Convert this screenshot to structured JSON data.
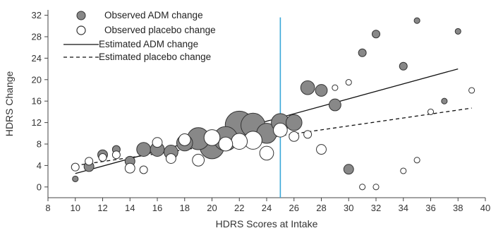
{
  "chart_data": {
    "type": "scatter",
    "xlabel": "HDRS Scores at Intake",
    "ylabel": "HDRS Change",
    "xlim": [
      8,
      40
    ],
    "ylim": [
      -2,
      33
    ],
    "x_ticks": [
      8,
      10,
      12,
      14,
      16,
      18,
      20,
      22,
      24,
      26,
      28,
      30,
      32,
      34,
      36,
      38,
      40
    ],
    "y_ticks": [
      0,
      4,
      8,
      12,
      16,
      20,
      24,
      28,
      32
    ],
    "legend": {
      "position": "top-left",
      "entries": [
        "Observed ADM change",
        "Observed placebo change",
        "Estimated ADM change",
        "Estimated placebo change"
      ]
    },
    "reference_line": {
      "x": 25,
      "color": "#3aa7d8"
    },
    "colors": {
      "adm_fill": "#888888",
      "placebo_fill": "#ffffff",
      "marker_stroke": "#333333"
    },
    "series": [
      {
        "name": "Observed ADM change",
        "points": [
          {
            "x": 10,
            "y": 1.5,
            "size": 1
          },
          {
            "x": 11,
            "y": 3.8,
            "size": 3
          },
          {
            "x": 12,
            "y": 6.0,
            "size": 3
          },
          {
            "x": 13,
            "y": 7.0,
            "size": 2
          },
          {
            "x": 14,
            "y": 4.8,
            "size": 3
          },
          {
            "x": 15,
            "y": 7.0,
            "size": 5
          },
          {
            "x": 16,
            "y": 7.0,
            "size": 5
          },
          {
            "x": 17,
            "y": 6.5,
            "size": 5
          },
          {
            "x": 18,
            "y": 8.2,
            "size": 6
          },
          {
            "x": 19,
            "y": 9.0,
            "size": 9
          },
          {
            "x": 20,
            "y": 7.5,
            "size": 10
          },
          {
            "x": 21,
            "y": 9.0,
            "size": 10
          },
          {
            "x": 22,
            "y": 11.5,
            "size": 12
          },
          {
            "x": 23,
            "y": 11.5,
            "size": 10
          },
          {
            "x": 24,
            "y": 10.0,
            "size": 8
          },
          {
            "x": 25,
            "y": 12.0,
            "size": 7
          },
          {
            "x": 26,
            "y": 12.0,
            "size": 6
          },
          {
            "x": 27,
            "y": 18.5,
            "size": 5
          },
          {
            "x": 28,
            "y": 18.0,
            "size": 4
          },
          {
            "x": 29,
            "y": 15.3,
            "size": 4
          },
          {
            "x": 30,
            "y": 3.3,
            "size": 3
          },
          {
            "x": 31,
            "y": 25.0,
            "size": 2
          },
          {
            "x": 32,
            "y": 28.5,
            "size": 2
          },
          {
            "x": 34,
            "y": 22.5,
            "size": 2
          },
          {
            "x": 35,
            "y": 31.0,
            "size": 1
          },
          {
            "x": 37,
            "y": 16.0,
            "size": 1
          },
          {
            "x": 38,
            "y": 29.0,
            "size": 1
          }
        ]
      },
      {
        "name": "Observed placebo change",
        "points": [
          {
            "x": 10,
            "y": 3.7,
            "size": 2
          },
          {
            "x": 11,
            "y": 4.8,
            "size": 2
          },
          {
            "x": 12,
            "y": 5.5,
            "size": 2
          },
          {
            "x": 13,
            "y": 6.0,
            "size": 2
          },
          {
            "x": 14,
            "y": 3.5,
            "size": 3
          },
          {
            "x": 15,
            "y": 3.2,
            "size": 2
          },
          {
            "x": 16,
            "y": 8.3,
            "size": 3
          },
          {
            "x": 17,
            "y": 5.3,
            "size": 3
          },
          {
            "x": 18,
            "y": 8.8,
            "size": 4
          },
          {
            "x": 19,
            "y": 5.0,
            "size": 4
          },
          {
            "x": 20,
            "y": 9.2,
            "size": 6
          },
          {
            "x": 21,
            "y": 8.0,
            "size": 5
          },
          {
            "x": 22,
            "y": 8.5,
            "size": 6
          },
          {
            "x": 23,
            "y": 8.7,
            "size": 7
          },
          {
            "x": 24,
            "y": 6.3,
            "size": 5
          },
          {
            "x": 25,
            "y": 10.6,
            "size": 5
          },
          {
            "x": 26,
            "y": 9.4,
            "size": 3
          },
          {
            "x": 27,
            "y": 9.8,
            "size": 2
          },
          {
            "x": 28,
            "y": 7.0,
            "size": 3
          },
          {
            "x": 29,
            "y": 18.5,
            "size": 1
          },
          {
            "x": 30,
            "y": 19.5,
            "size": 1
          },
          {
            "x": 31,
            "y": 0.0,
            "size": 1
          },
          {
            "x": 32,
            "y": 0.0,
            "size": 1
          },
          {
            "x": 34,
            "y": 3.0,
            "size": 1
          },
          {
            "x": 35,
            "y": 5.0,
            "size": 1
          },
          {
            "x": 36,
            "y": 14.0,
            "size": 1
          },
          {
            "x": 39,
            "y": 18.0,
            "size": 1
          }
        ]
      },
      {
        "name": "Estimated ADM change",
        "line": [
          {
            "x": 10,
            "y": 2.5
          },
          {
            "x": 38,
            "y": 22.0
          }
        ]
      },
      {
        "name": "Estimated placebo change",
        "line": [
          {
            "x": 10,
            "y": 4.0
          },
          {
            "x": 39,
            "y": 14.7
          }
        ]
      }
    ]
  }
}
